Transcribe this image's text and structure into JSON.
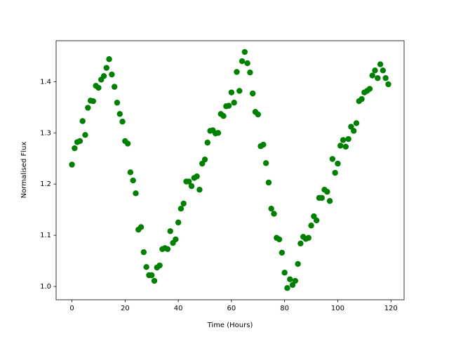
{
  "chart_data": {
    "type": "scatter",
    "x_label": "Time (Hours)",
    "y_label": "Normalised Flux",
    "color": "#008000",
    "x": [
      0,
      1,
      2,
      3,
      4,
      5,
      6,
      7,
      8,
      9,
      10,
      11,
      12,
      13,
      14,
      15,
      16,
      17,
      18,
      19,
      20,
      21,
      22,
      23,
      24,
      25,
      26,
      27,
      28,
      29,
      30,
      31,
      32,
      33,
      34,
      35,
      36,
      37,
      38,
      39,
      40,
      41,
      42,
      43,
      44,
      45,
      46,
      47,
      48,
      49,
      50,
      51,
      52,
      53,
      54,
      55,
      56,
      57,
      58,
      59,
      60,
      61,
      62,
      63,
      64,
      65,
      66,
      67,
      68,
      69,
      70,
      71,
      72,
      73,
      74,
      75,
      76,
      77,
      78,
      79,
      80,
      81,
      82,
      83,
      84,
      85,
      86,
      87,
      88,
      89,
      90,
      91,
      92,
      93,
      94,
      95,
      96,
      97,
      98,
      99,
      100,
      101,
      102,
      103,
      104,
      105,
      106,
      107,
      108,
      109,
      110,
      111,
      112,
      113,
      114,
      115,
      116,
      117,
      118,
      119
    ],
    "values": [
      1.238,
      1.27,
      1.282,
      1.284,
      1.323,
      1.296,
      1.349,
      1.363,
      1.362,
      1.392,
      1.388,
      1.404,
      1.411,
      1.427,
      1.444,
      1.414,
      1.39,
      1.359,
      1.337,
      1.322,
      1.284,
      1.279,
      1.223,
      1.207,
      1.182,
      1.111,
      1.116,
      1.067,
      1.038,
      1.022,
      1.022,
      1.011,
      1.037,
      1.041,
      1.073,
      1.075,
      1.073,
      1.108,
      1.085,
      1.092,
      1.125,
      1.152,
      1.162,
      1.205,
      1.205,
      1.196,
      1.212,
      1.215,
      1.189,
      1.24,
      1.248,
      1.281,
      1.304,
      1.305,
      1.299,
      1.3,
      1.337,
      1.333,
      1.352,
      1.353,
      1.379,
      1.359,
      1.419,
      1.382,
      1.44,
      1.458,
      1.436,
      1.418,
      1.377,
      1.341,
      1.336,
      1.274,
      1.277,
      1.241,
      1.203,
      1.152,
      1.142,
      1.095,
      1.092,
      1.066,
      1.027,
      0.997,
      1.014,
      1.003,
      1.011,
      1.044,
      1.084,
      1.097,
      1.093,
      1.095,
      1.119,
      1.137,
      1.129,
      1.173,
      1.173,
      1.189,
      1.185,
      1.167,
      1.249,
      1.222,
      1.24,
      1.275,
      1.286,
      1.273,
      1.288,
      1.312,
      1.304,
      1.319,
      1.362,
      1.366,
      1.379,
      1.382,
      1.386,
      1.412,
      1.422,
      1.407,
      1.434,
      1.422,
      1.407,
      1.395
    ],
    "xlim": [
      -5.95,
      124.95
    ],
    "ylim": [
      0.974,
      1.48
    ],
    "xticks": [
      0,
      20,
      40,
      60,
      80,
      100,
      120
    ],
    "yticks": [
      {
        "value": 1,
        "label": "1.0"
      },
      1.1,
      1.2,
      1.3,
      1.4
    ]
  }
}
